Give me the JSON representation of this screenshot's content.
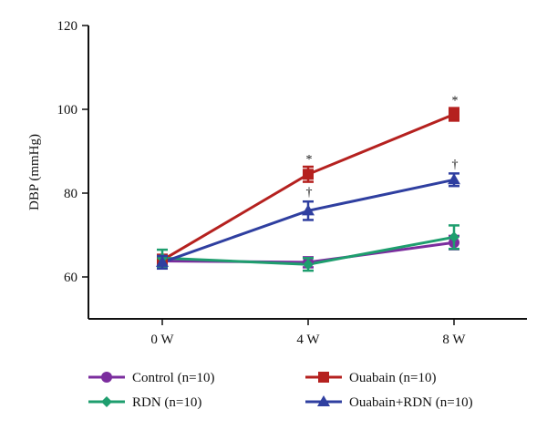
{
  "chart_data": {
    "type": "line",
    "title": "",
    "xlabel": "",
    "ylabel": "DBP (mmHg)",
    "categories": [
      "0 W",
      "4 W",
      "8 W"
    ],
    "ylim": [
      50,
      120
    ],
    "yticks": [
      60,
      80,
      100,
      120
    ],
    "grid": false,
    "legend_position": "bottom",
    "series": [
      {
        "name": "Control (n=10)",
        "color": "#7B2D9E",
        "marker": "circle",
        "values": [
          63.8,
          63.5,
          68.2
        ],
        "errors": [
          1.2,
          1.2,
          1.6
        ]
      },
      {
        "name": "Ouabain (n=10)",
        "color": "#B5211F",
        "marker": "square",
        "values": [
          64.0,
          84.5,
          98.8
        ],
        "errors": [
          1.3,
          1.8,
          1.5
        ]
      },
      {
        "name": "RDN (n=10)",
        "color": "#1E9E6E",
        "marker": "diamond",
        "values": [
          64.5,
          63.0,
          69.5
        ],
        "errors": [
          2.0,
          1.5,
          2.8
        ]
      },
      {
        "name": "Ouabain+RDN (n=10)",
        "color": "#2F3FA0",
        "marker": "triangle",
        "values": [
          63.5,
          75.8,
          83.2
        ],
        "errors": [
          1.5,
          2.2,
          1.5
        ]
      }
    ],
    "annotations": [
      {
        "text": "*",
        "x": "4 W",
        "series": "Ouabain (n=10)"
      },
      {
        "text": "†",
        "x": "4 W",
        "series": "Ouabain+RDN (n=10)"
      },
      {
        "text": "*",
        "x": "8 W",
        "series": "Ouabain (n=10)"
      },
      {
        "text": "†",
        "x": "8 W",
        "series": "Ouabain+RDN (n=10)"
      }
    ]
  }
}
